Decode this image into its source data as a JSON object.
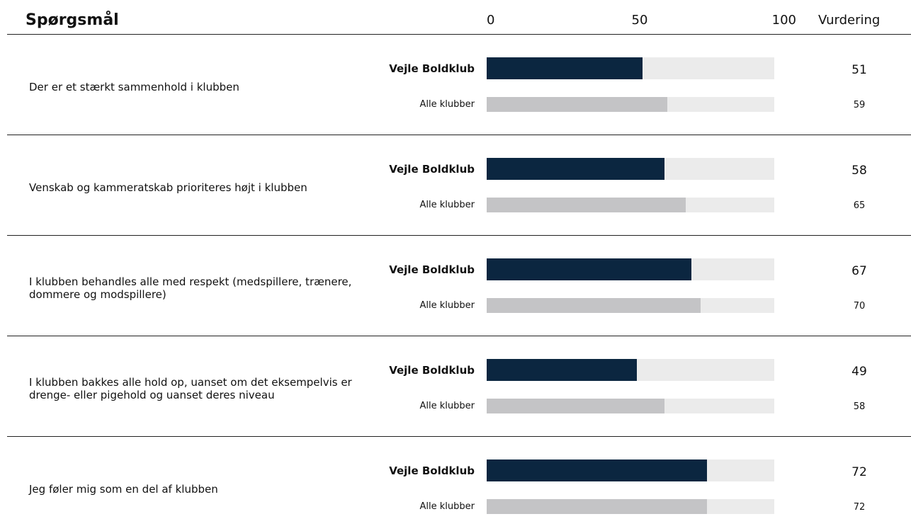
{
  "chart_data": {
    "type": "bar",
    "orientation": "horizontal",
    "title": "Spørgsmål",
    "value_header": "Vurdering",
    "categories": [
      "Der er et stærkt sammenhold i klubben",
      "Venskab og kammeratskab prioriteres højt i klubben",
      "I klubben behandles alle med respekt (medspillere, trænere, dommere og modspillere)",
      "I klubben bakkes alle hold op, uanset om det eksempelvis er drenge- eller pigehold og uanset deres niveau",
      "Jeg føler mig som en del af klubben"
    ],
    "series": [
      {
        "name": "Vejle Boldklub",
        "color": "#0b2640",
        "values": [
          51,
          58,
          67,
          49,
          72
        ]
      },
      {
        "name": "Alle klubber",
        "color": "#c4c4c6",
        "values": [
          59,
          65,
          70,
          58,
          72
        ]
      }
    ],
    "xlim": [
      0,
      100
    ],
    "xticks": [
      0,
      50,
      100
    ]
  }
}
